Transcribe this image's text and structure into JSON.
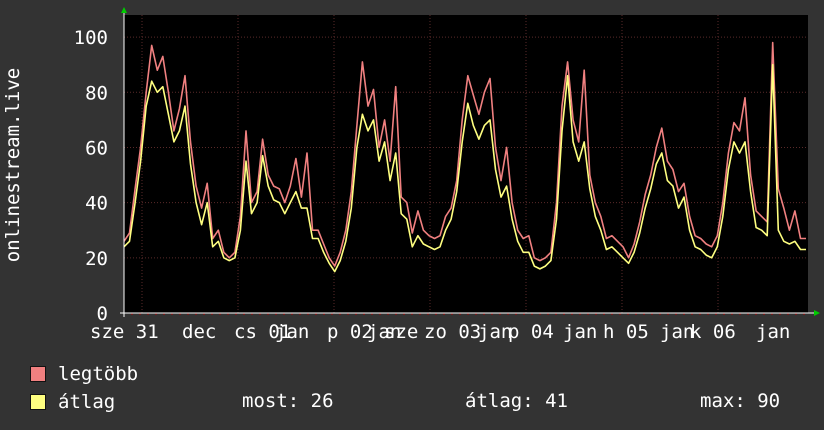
{
  "chart_data": {
    "type": "line",
    "ylabel": "onlinestream.live",
    "ylim": [
      0,
      108
    ],
    "yticks": [
      0,
      20,
      40,
      60,
      80,
      100
    ],
    "x_tick_labels": [
      "sze 31",
      "dec",
      "cs 01",
      "jan",
      "p 02",
      "jan",
      "sze",
      "zo 03",
      "jan",
      "p 04",
      "jan",
      "h 05",
      "jan",
      "k 06",
      "jan"
    ],
    "grid": true,
    "colors": {
      "background": "#333333",
      "plot": "#000000",
      "grid": "#5a2a2a",
      "axis": "#ffffff"
    },
    "series": [
      {
        "name": "legtöbb",
        "color": "#f08080",
        "values": [
          26,
          29,
          45,
          60,
          80,
          97,
          88,
          93,
          80,
          66,
          74,
          86,
          62,
          46,
          38,
          47,
          27,
          30,
          22,
          20,
          22,
          35,
          66,
          40,
          44,
          63,
          50,
          46,
          45,
          40,
          46,
          56,
          42,
          58,
          30,
          30,
          25,
          20,
          17,
          22,
          30,
          44,
          68,
          91,
          75,
          81,
          60,
          70,
          55,
          82,
          42,
          40,
          29,
          37,
          30,
          28,
          27,
          28,
          35,
          38,
          48,
          70,
          86,
          79,
          72,
          80,
          85,
          60,
          48,
          60,
          40,
          30,
          27,
          28,
          20,
          19,
          20,
          22,
          40,
          75,
          91,
          70,
          62,
          88,
          50,
          40,
          35,
          27,
          28,
          26,
          24,
          20,
          25,
          33,
          43,
          50,
          60,
          67,
          55,
          52,
          44,
          47,
          35,
          28,
          27,
          25,
          24,
          28,
          40,
          58,
          69,
          66,
          78,
          50,
          37,
          35,
          33,
          98,
          45,
          38,
          30,
          37,
          27,
          27
        ],
        "legend_label": "legtöbb"
      },
      {
        "name": "átlag",
        "color": "#ffff80",
        "values": [
          24,
          26,
          40,
          55,
          75,
          84,
          80,
          82,
          72,
          62,
          66,
          75,
          54,
          40,
          32,
          40,
          24,
          26,
          20,
          19,
          20,
          30,
          55,
          36,
          40,
          57,
          46,
          41,
          40,
          36,
          40,
          44,
          38,
          38,
          27,
          27,
          22,
          18,
          15,
          19,
          26,
          38,
          60,
          72,
          66,
          70,
          55,
          62,
          48,
          58,
          36,
          34,
          24,
          28,
          25,
          24,
          23,
          24,
          30,
          34,
          44,
          62,
          76,
          68,
          63,
          68,
          70,
          52,
          42,
          46,
          34,
          26,
          22,
          22,
          17,
          16,
          17,
          19,
          34,
          66,
          86,
          62,
          55,
          62,
          45,
          35,
          30,
          23,
          24,
          22,
          20,
          18,
          22,
          29,
          38,
          45,
          54,
          58,
          48,
          46,
          38,
          42,
          30,
          24,
          23,
          21,
          20,
          24,
          35,
          52,
          62,
          58,
          62,
          44,
          31,
          30,
          28,
          90,
          30,
          26,
          25,
          26,
          23,
          23
        ],
        "legend_label": "átlag"
      }
    ],
    "stats": {
      "most_label": "most:",
      "most_value": "26",
      "atlag_label": "átlag:",
      "atlag_value": "41",
      "max_label": "max:",
      "max_value": "90"
    }
  }
}
